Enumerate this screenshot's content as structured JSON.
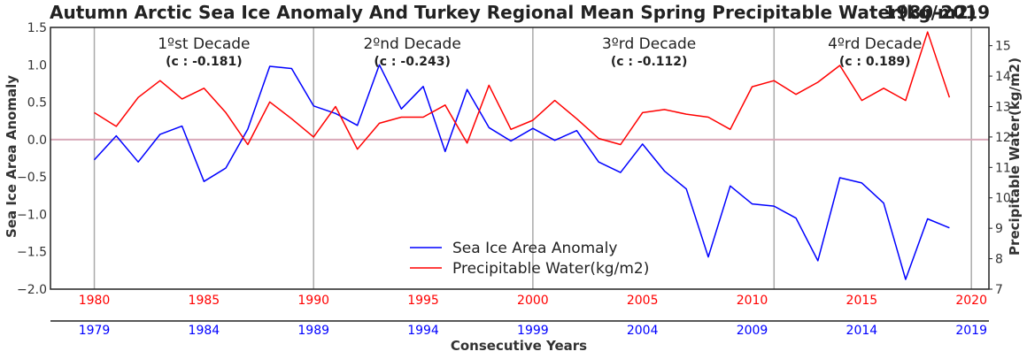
{
  "chart_data": {
    "type": "line",
    "title": "Autumn Arctic Sea Ice Anomaly And Turkey Regional Mean Spring Precipitable Water(kg/m2)",
    "title_right": "1980-2019",
    "ylabel_left": "Sea Ice Area Anomaly",
    "ylabel_right": "Precipitable Water(kg/m2)",
    "xlabel_bottom": "Consecutive Years",
    "ylim_left": [
      -2.0,
      1.5
    ],
    "ylim_right": [
      7,
      15.6
    ],
    "xlim": [
      1978,
      2020.8
    ],
    "left_ticks": [
      "1.5",
      "1.0",
      "0.5",
      "0.0",
      "−0.5",
      "−1.0",
      "−1.5",
      "−2.0"
    ],
    "right_ticks": [
      "15",
      "14",
      "13",
      "12",
      "11",
      "10",
      "9",
      "8",
      "7"
    ],
    "top_x_ticks": [
      "1980",
      "1985",
      "1990",
      "1995",
      "2000",
      "2005",
      "2010",
      "2015",
      "2020"
    ],
    "bottom_x_ticks": [
      "1979",
      "1984",
      "1989",
      "1994",
      "1999",
      "2004",
      "2009",
      "2014",
      "2019"
    ],
    "decade_lines": [
      1980,
      1990,
      2000,
      2011,
      2020
    ],
    "zero_line": 0.0,
    "decades": [
      {
        "name": "1ºst Decade",
        "corr": "(c : -0.181)",
        "x": 1985
      },
      {
        "name": "2ºnd Decade",
        "corr": "(c : -0.243)",
        "x": 1994.5
      },
      {
        "name": "3ºrd Decade",
        "corr": "(c : -0.112)",
        "x": 2005.3
      },
      {
        "name": "4ºrd Decade",
        "corr": "(c : 0.189)",
        "x": 2015.6
      }
    ],
    "series": [
      {
        "name": "Sea Ice Area Anomaly",
        "color": "#0000ff",
        "axis": "left",
        "x": [
          1980,
          1981,
          1982,
          1983,
          1984,
          1985,
          1986,
          1987,
          1988,
          1989,
          1990,
          1991,
          1992,
          1993,
          1994,
          1995,
          1996,
          1997,
          1998,
          1999,
          2000,
          2001,
          2002,
          2003,
          2004,
          2005,
          2006,
          2007,
          2008,
          2009,
          2010,
          2011,
          2012,
          2013,
          2014,
          2015,
          2016,
          2017,
          2018,
          2019
        ],
        "values": [
          -0.27,
          0.05,
          -0.3,
          0.07,
          0.18,
          -0.56,
          -0.38,
          0.14,
          0.98,
          0.95,
          0.45,
          0.35,
          0.19,
          1.0,
          0.41,
          0.71,
          -0.16,
          0.67,
          0.16,
          -0.02,
          0.15,
          -0.01,
          0.12,
          -0.3,
          -0.44,
          -0.06,
          -0.42,
          -0.66,
          -1.57,
          -0.62,
          -0.86,
          -0.89,
          -1.05,
          -1.62,
          -0.51,
          -0.58,
          -0.85,
          -1.87,
          -1.06,
          -1.18
        ]
      },
      {
        "name": "Precipitable Water(kg/m2)",
        "color": "#ff0000",
        "axis": "right",
        "x": [
          1980,
          1981,
          1982,
          1983,
          1984,
          1985,
          1986,
          1987,
          1988,
          1989,
          1990,
          1991,
          1992,
          1993,
          1994,
          1995,
          1996,
          1997,
          1998,
          1999,
          2000,
          2001,
          2002,
          2003,
          2004,
          2005,
          2006,
          2007,
          2008,
          2009,
          2010,
          2011,
          2012,
          2013,
          2014,
          2015,
          2016,
          2017,
          2018,
          2019
        ],
        "values": [
          12.8,
          12.35,
          13.3,
          13.85,
          13.25,
          13.6,
          12.8,
          11.75,
          13.15,
          12.6,
          12.0,
          13.0,
          11.6,
          12.45,
          12.65,
          12.65,
          13.05,
          11.8,
          13.7,
          12.25,
          12.55,
          13.2,
          12.6,
          11.95,
          11.75,
          12.8,
          12.9,
          12.75,
          12.65,
          12.25,
          13.65,
          13.85,
          13.4,
          13.8,
          14.35,
          13.2,
          13.6,
          13.2,
          15.45,
          13.3
        ]
      }
    ]
  }
}
